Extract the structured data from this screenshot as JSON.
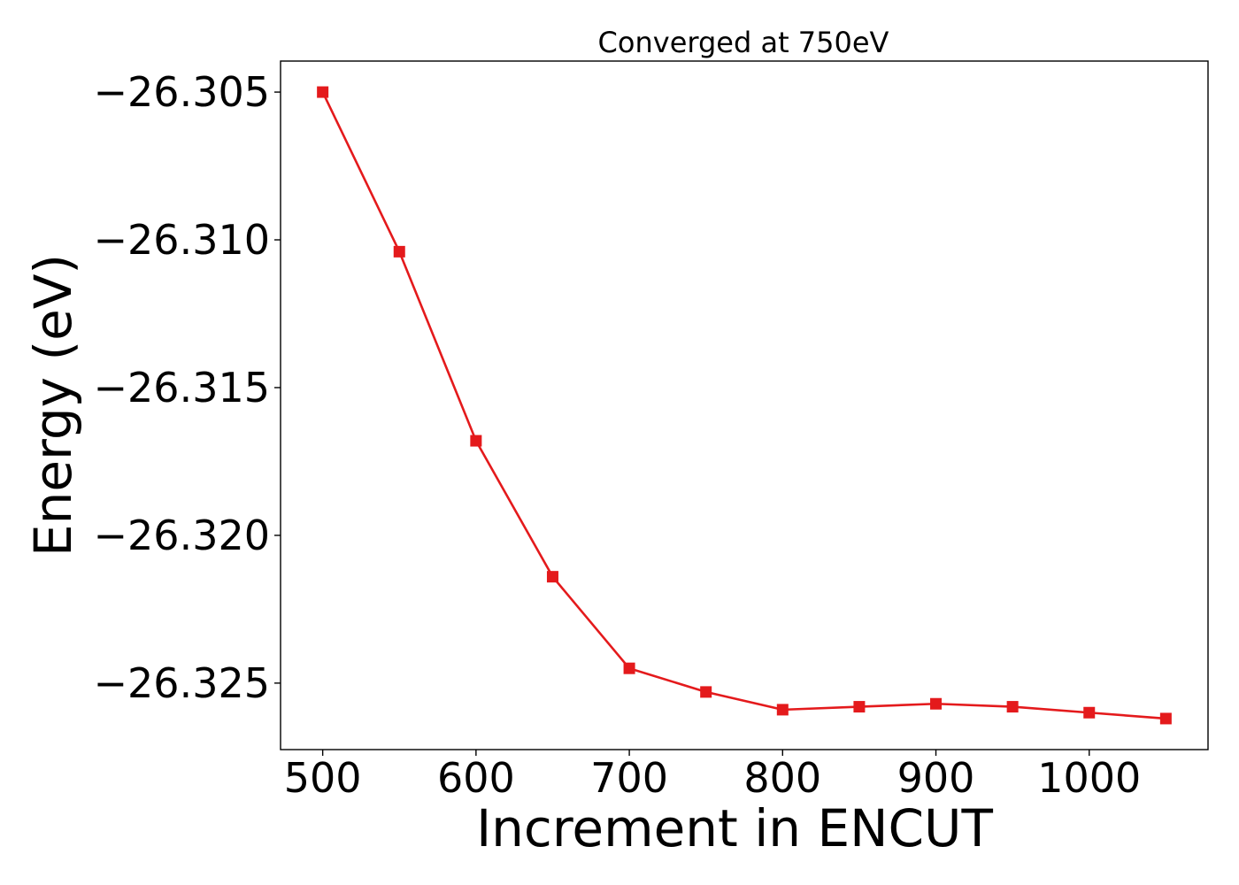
{
  "chart_data": {
    "type": "line",
    "title": "Converged at 750eV",
    "xlabel": "Increment in ENCUT",
    "ylabel": "Energy (eV)",
    "x": [
      500,
      550,
      600,
      650,
      700,
      750,
      800,
      850,
      900,
      950,
      1000,
      1050
    ],
    "series": [
      {
        "values": [
          -26.305,
          -26.3104,
          -26.3168,
          -26.3214,
          -26.3245,
          -26.3253,
          -26.3259,
          -26.3258,
          -26.3257,
          -26.3258,
          -26.326,
          -26.3262
        ],
        "color": "#e41a1c",
        "marker": "square"
      }
    ],
    "xlim": [
      472.5,
      1077.5
    ],
    "ylim": [
      -26.32725,
      -26.30395
    ],
    "xticks": [
      500,
      600,
      700,
      800,
      900,
      1000
    ],
    "yticks": [
      -26.305,
      -26.31,
      -26.315,
      -26.32,
      -26.325
    ],
    "xtick_labels": [
      "500",
      "600",
      "700",
      "800",
      "900",
      "1000"
    ],
    "ytick_labels": [
      "−26.305",
      "−26.310",
      "−26.315",
      "−26.320",
      "−26.325"
    ],
    "grid": false,
    "legend": "none"
  }
}
